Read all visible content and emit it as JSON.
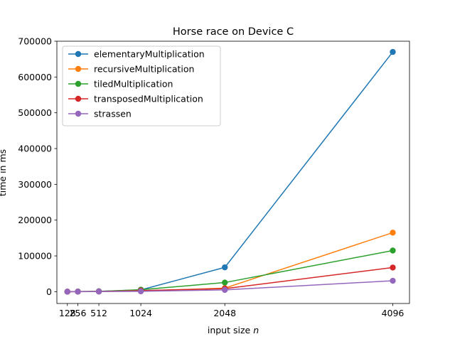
{
  "chart_data": {
    "type": "line",
    "title": "Horse race on Device C",
    "xlabel": "input size",
    "xlabel_var": "n",
    "ylabel": "time in ms",
    "x": [
      128,
      256,
      512,
      1024,
      2048,
      4096
    ],
    "x_tick_labels": [
      "128",
      "256",
      "512",
      "1024",
      "2048",
      "4096"
    ],
    "xlim": [
      0,
      4300
    ],
    "ylim": [
      -33000,
      700000
    ],
    "y_ticks": [
      0,
      100000,
      200000,
      300000,
      400000,
      500000,
      600000,
      700000
    ],
    "y_tick_labels": [
      "0",
      "100000",
      "200000",
      "300000",
      "400000",
      "500000",
      "600000",
      "700000"
    ],
    "grid": false,
    "legend_position": "top-left",
    "series": [
      {
        "name": "elementaryMultiplication",
        "color": "#1f77b4",
        "values": [
          100,
          300,
          1000,
          5000,
          68000,
          670000
        ]
      },
      {
        "name": "recursiveMultiplication",
        "color": "#ff7f0e",
        "values": [
          50,
          200,
          700,
          2000,
          10000,
          165000
        ]
      },
      {
        "name": "tiledMultiplication",
        "color": "#2ca02c",
        "values": [
          100,
          300,
          800,
          5500,
          25500,
          115000
        ]
      },
      {
        "name": "transposedMultiplication",
        "color": "#d62728",
        "values": [
          50,
          200,
          600,
          3000,
          8500,
          67500
        ]
      },
      {
        "name": "strassen",
        "color": "#9467bd",
        "values": [
          30,
          100,
          300,
          1000,
          5000,
          30500
        ]
      }
    ]
  }
}
